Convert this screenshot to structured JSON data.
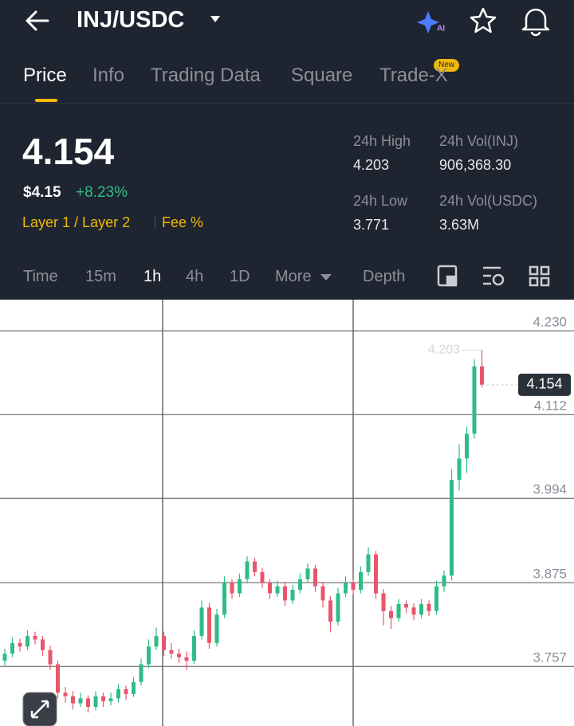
{
  "header": {
    "pair": "INJ/USDC"
  },
  "tabs": [
    "Price",
    "Info",
    "Trading Data",
    "Square",
    "Trade-X"
  ],
  "tab_badge": "New",
  "ticker": {
    "price": "4.154",
    "fiat": "$4.15",
    "change": "+8.23%",
    "tags": [
      "Layer 1 / Layer 2",
      "Fee %"
    ],
    "stats": [
      {
        "label": "24h High",
        "value": "4.203"
      },
      {
        "label": "24h Vol(INJ)",
        "value": "906,368.30"
      },
      {
        "label": "24h Low",
        "value": "3.771"
      },
      {
        "label": "24h Vol(USDC)",
        "value": "3.63M"
      }
    ]
  },
  "intervals": [
    "Time",
    "15m",
    "1h",
    "4h",
    "1D",
    "More",
    "Depth"
  ],
  "chart_data": {
    "type": "candlestick",
    "up_color": "#2ebd85",
    "down_color": "#e8566c",
    "ylim": [
      3.673,
      4.274
    ],
    "yticks": [
      {
        "value": 4.23,
        "label": "4.230"
      },
      4.112,
      3.994,
      3.875,
      3.757
    ],
    "grid": true,
    "high_marker": 4.203,
    "last_price": 4.154,
    "open": [
      3.765,
      3.775,
      3.79,
      3.785,
      3.8,
      3.795,
      3.78,
      3.76,
      3.72,
      3.715,
      3.705,
      3.712,
      3.7,
      3.715,
      3.708,
      3.712,
      3.725,
      3.718,
      3.735,
      3.76,
      3.785,
      3.8,
      3.78,
      3.775,
      3.77,
      3.765,
      3.8,
      3.84,
      3.79,
      3.83,
      3.875,
      3.86,
      3.88,
      3.905,
      3.89,
      3.875,
      3.86,
      3.87,
      3.85,
      3.865,
      3.88,
      3.895,
      3.87,
      3.85,
      3.82,
      3.86,
      3.875,
      3.865,
      3.89,
      3.915,
      3.86,
      3.835,
      3.825,
      3.845,
      3.84,
      3.83,
      3.845,
      3.835,
      3.87,
      3.885,
      4.02,
      4.05,
      4.085,
      4.18
    ],
    "high": [
      3.782,
      3.798,
      3.796,
      3.808,
      3.806,
      3.8,
      3.786,
      3.765,
      3.728,
      3.722,
      3.72,
      3.716,
      3.722,
      3.72,
      3.72,
      3.732,
      3.73,
      3.742,
      3.768,
      3.795,
      3.812,
      3.806,
      3.79,
      3.782,
      3.778,
      3.808,
      3.85,
      3.846,
      3.838,
      3.884,
      3.88,
      3.888,
      3.912,
      3.91,
      3.896,
      3.88,
      3.878,
      3.875,
      3.872,
      3.888,
      3.902,
      3.9,
      3.876,
      3.856,
      3.868,
      3.884,
      3.88,
      3.898,
      3.925,
      3.92,
      3.866,
      3.842,
      3.852,
      3.85,
      3.846,
      3.852,
      3.85,
      3.878,
      3.892,
      4.035,
      4.07,
      4.095,
      4.19,
      4.203
    ],
    "low": [
      3.758,
      3.77,
      3.778,
      3.78,
      3.788,
      3.772,
      3.752,
      3.712,
      3.706,
      3.696,
      3.7,
      3.692,
      3.695,
      3.7,
      3.702,
      3.706,
      3.71,
      3.714,
      3.73,
      3.755,
      3.78,
      3.772,
      3.768,
      3.762,
      3.752,
      3.76,
      3.795,
      3.782,
      3.785,
      3.825,
      3.852,
      3.855,
      3.875,
      3.884,
      3.868,
      3.852,
      3.855,
      3.842,
      3.845,
      3.86,
      3.875,
      3.862,
      3.84,
      3.805,
      3.815,
      3.855,
      3.858,
      3.86,
      3.885,
      3.852,
      3.815,
      3.81,
      3.82,
      3.832,
      3.822,
      3.825,
      3.828,
      3.83,
      3.862,
      3.878,
      4.005,
      4.03,
      4.078,
      4.15
    ],
    "close": [
      3.775,
      3.79,
      3.785,
      3.8,
      3.795,
      3.78,
      3.76,
      3.72,
      3.715,
      3.705,
      3.712,
      3.7,
      3.715,
      3.708,
      3.712,
      3.725,
      3.718,
      3.735,
      3.76,
      3.785,
      3.8,
      3.78,
      3.775,
      3.77,
      3.765,
      3.8,
      3.84,
      3.79,
      3.83,
      3.875,
      3.86,
      3.88,
      3.905,
      3.89,
      3.875,
      3.86,
      3.87,
      3.85,
      3.865,
      3.88,
      3.895,
      3.87,
      3.85,
      3.82,
      3.86,
      3.875,
      3.865,
      3.89,
      3.915,
      3.86,
      3.835,
      3.825,
      3.845,
      3.84,
      3.83,
      3.845,
      3.835,
      3.87,
      3.885,
      4.02,
      4.05,
      4.085,
      4.18,
      4.154
    ]
  }
}
